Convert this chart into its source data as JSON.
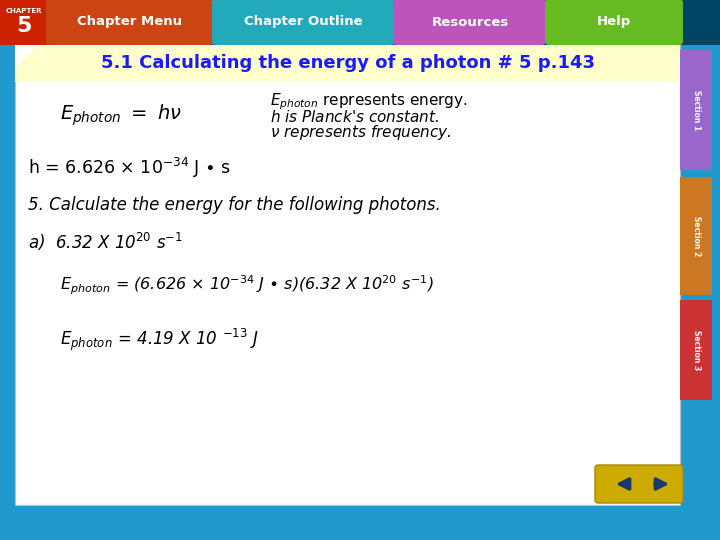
{
  "title": "5.1 Calculating the energy of a photon # 5 p.143",
  "title_color": "#1a1aff",
  "title_bg": "#ffffcc",
  "main_bg": "#ffffff",
  "outer_bg": "#2299cc",
  "nav_bar_bg": "#004466",
  "chapter_bg": "#cc2200",
  "nav_items": [
    "Chapter Menu",
    "Chapter Outline",
    "Resources",
    "Help"
  ],
  "nav_colors": [
    "#cc4400",
    "#22aacc",
    "#cc55bb",
    "#66bb22"
  ],
  "section_colors": [
    "#9966cc",
    "#cc7722",
    "#cc3333"
  ],
  "section_labels": [
    "Section 1",
    "Section 2",
    "Section 3"
  ],
  "arrow_bg": "#ccaa00"
}
